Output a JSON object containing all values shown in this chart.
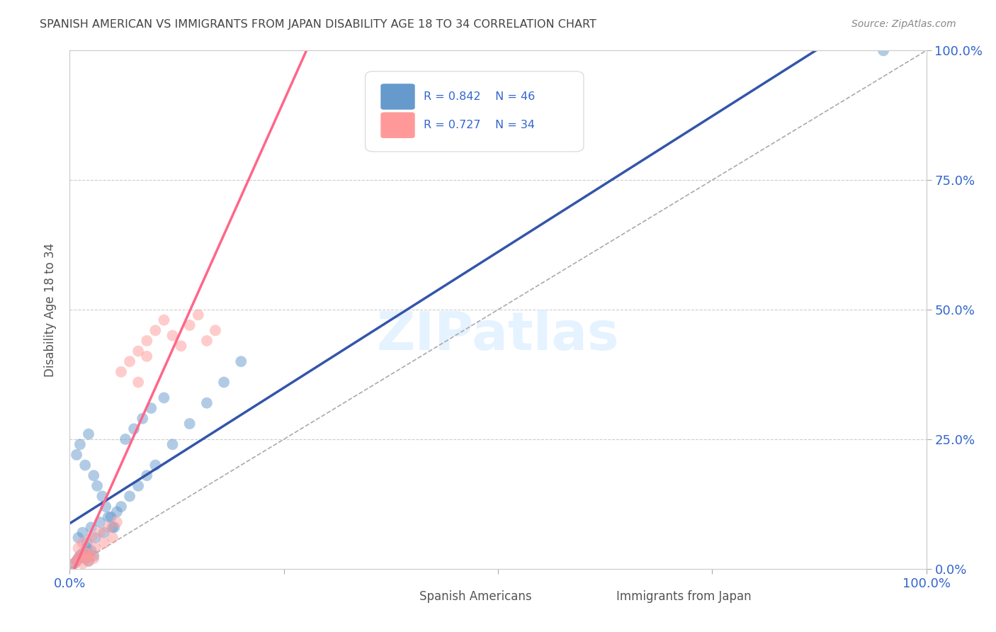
{
  "title": "SPANISH AMERICAN VS IMMIGRANTS FROM JAPAN DISABILITY AGE 18 TO 34 CORRELATION CHART",
  "source": "Source: ZipAtlas.com",
  "ylabel": "Disability Age 18 to 34",
  "xlim": [
    0,
    1
  ],
  "ylim": [
    0,
    1
  ],
  "ytick_labels_right": [
    "0.0%",
    "25.0%",
    "50.0%",
    "75.0%",
    "100.0%"
  ],
  "series1_label": "Spanish Americans",
  "series2_label": "Immigrants from Japan",
  "blue_color": "#6699CC",
  "pink_color": "#FF9999",
  "blue_line_color": "#3355AA",
  "pink_line_color": "#FF6688",
  "axis_color": "#3366CC",
  "legend_r_color": "#3366CC",
  "watermark": "ZIPatlas",
  "background_color": "#FFFFFF",
  "grid_color": "#CCCCCC",
  "blue_x": [
    0.005,
    0.008,
    0.01,
    0.012,
    0.015,
    0.018,
    0.02,
    0.022,
    0.025,
    0.028,
    0.01,
    0.015,
    0.02,
    0.025,
    0.03,
    0.035,
    0.04,
    0.045,
    0.05,
    0.055,
    0.008,
    0.012,
    0.018,
    0.022,
    0.028,
    0.032,
    0.038,
    0.042,
    0.048,
    0.052,
    0.06,
    0.07,
    0.08,
    0.09,
    0.1,
    0.12,
    0.14,
    0.16,
    0.18,
    0.2,
    0.065,
    0.075,
    0.085,
    0.095,
    0.11,
    0.95
  ],
  "blue_y": [
    0.01,
    0.015,
    0.02,
    0.025,
    0.03,
    0.02,
    0.04,
    0.015,
    0.035,
    0.025,
    0.06,
    0.07,
    0.05,
    0.08,
    0.06,
    0.09,
    0.07,
    0.1,
    0.08,
    0.11,
    0.22,
    0.24,
    0.2,
    0.26,
    0.18,
    0.16,
    0.14,
    0.12,
    0.1,
    0.08,
    0.12,
    0.14,
    0.16,
    0.18,
    0.2,
    0.24,
    0.28,
    0.32,
    0.36,
    0.4,
    0.25,
    0.27,
    0.29,
    0.31,
    0.33,
    1.0
  ],
  "pink_x": [
    0.005,
    0.008,
    0.01,
    0.012,
    0.015,
    0.018,
    0.02,
    0.022,
    0.025,
    0.028,
    0.01,
    0.015,
    0.02,
    0.025,
    0.03,
    0.035,
    0.04,
    0.045,
    0.05,
    0.055,
    0.08,
    0.09,
    0.1,
    0.11,
    0.12,
    0.13,
    0.14,
    0.15,
    0.16,
    0.17,
    0.06,
    0.07,
    0.08,
    0.09
  ],
  "pink_y": [
    0.01,
    0.015,
    0.02,
    0.025,
    0.01,
    0.03,
    0.02,
    0.015,
    0.025,
    0.02,
    0.04,
    0.05,
    0.03,
    0.06,
    0.04,
    0.07,
    0.05,
    0.08,
    0.06,
    0.09,
    0.42,
    0.44,
    0.46,
    0.48,
    0.45,
    0.43,
    0.47,
    0.49,
    0.44,
    0.46,
    0.38,
    0.4,
    0.36,
    0.41
  ]
}
